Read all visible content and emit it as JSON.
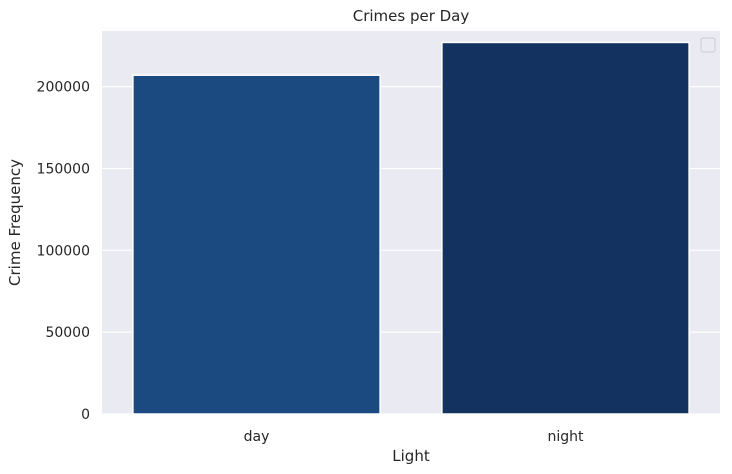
{
  "chart_data": {
    "type": "bar",
    "title": "Crimes per Day",
    "xlabel": "Light",
    "ylabel": "Crime Frequency",
    "categories": [
      "day",
      "night"
    ],
    "values": [
      207000,
      227000
    ],
    "ylim": [
      0,
      234000
    ],
    "yticks": [
      0,
      50000,
      100000,
      150000,
      200000
    ],
    "ytick_labels": [
      "0",
      "50000",
      "100000",
      "150000",
      "200000"
    ],
    "grid": true,
    "legend": "top-right",
    "legend_entries": [],
    "colors": {
      "background": "#eaeaf2",
      "grid": "#ffffff",
      "bars": [
        "#1a4a80",
        "#14325f"
      ]
    }
  }
}
